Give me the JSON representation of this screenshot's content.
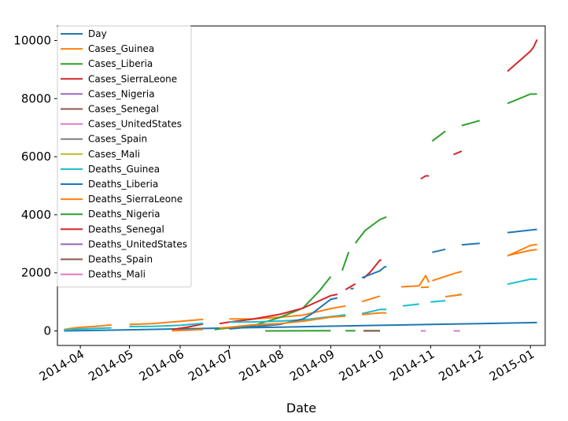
{
  "chart_data": {
    "type": "line",
    "title": "",
    "xlabel": "Date",
    "ylabel": "",
    "xlim": [
      "2014-03-18",
      "2015-01-10"
    ],
    "ylim": [
      -500,
      10500
    ],
    "x_ticks": [
      {
        "date": "2014-04-01",
        "label": "2014-04"
      },
      {
        "date": "2014-05-01",
        "label": "2014-05"
      },
      {
        "date": "2014-06-01",
        "label": "2014-06"
      },
      {
        "date": "2014-07-01",
        "label": "2014-07"
      },
      {
        "date": "2014-08-01",
        "label": "2014-08"
      },
      {
        "date": "2014-09-01",
        "label": "2014-09"
      },
      {
        "date": "2014-10-01",
        "label": "2014-10"
      },
      {
        "date": "2014-11-01",
        "label": "2014-11"
      },
      {
        "date": "2014-12-01",
        "label": "2014-12"
      },
      {
        "date": "2015-01-01",
        "label": "2015-01"
      }
    ],
    "y_ticks": [
      0,
      2000,
      4000,
      6000,
      8000,
      10000
    ],
    "legend_position": "upper-left",
    "series": [
      {
        "name": "Day",
        "color": "#1f77b4",
        "points": [
          [
            "2014-03-22",
            0
          ],
          [
            "2014-05-01",
            40
          ],
          [
            "2014-06-01",
            71
          ],
          [
            "2014-07-01",
            101
          ],
          [
            "2014-08-01",
            132
          ],
          [
            "2014-09-01",
            163
          ],
          [
            "2014-10-01",
            193
          ],
          [
            "2014-11-01",
            224
          ],
          [
            "2014-12-01",
            254
          ],
          [
            "2015-01-05",
            289
          ]
        ]
      },
      {
        "name": "Cases_Guinea",
        "color": "#ff7f0e",
        "points": [
          [
            "2014-03-22",
            49
          ],
          [
            "2014-03-26",
            86
          ],
          [
            "2014-04-01",
            122
          ],
          [
            "2014-04-10",
            157
          ],
          [
            "2014-04-20",
            208
          ],
          null,
          [
            "2014-05-01",
            226
          ],
          [
            "2014-05-15",
            250
          ],
          [
            "2014-06-01",
            328
          ],
          [
            "2014-06-15",
            398
          ],
          null,
          [
            "2014-07-01",
            413
          ],
          [
            "2014-07-15",
            411
          ],
          [
            "2014-08-01",
            472
          ],
          [
            "2014-08-15",
            543
          ],
          [
            "2014-09-01",
            771
          ],
          [
            "2014-09-10",
            861
          ],
          null,
          [
            "2014-09-20",
            1008
          ],
          [
            "2014-10-01",
            1199
          ],
          null,
          [
            "2014-10-14",
            1519
          ],
          [
            "2014-10-25",
            1553
          ],
          [
            "2014-10-29",
            1906
          ],
          [
            "2014-10-31",
            1667
          ],
          null,
          [
            "2014-11-02",
            1731
          ],
          [
            "2014-11-15",
            1971
          ],
          [
            "2014-11-20",
            2047
          ],
          null,
          [
            "2014-12-18",
            2597
          ],
          [
            "2015-01-01",
            2775
          ],
          [
            "2015-01-05",
            2806
          ]
        ]
      },
      {
        "name": "Cases_Liberia",
        "color": "#2ca02c",
        "points": [
          [
            "2014-06-22",
            51
          ],
          [
            "2014-07-01",
            107
          ],
          [
            "2014-07-15",
            172
          ],
          [
            "2014-08-01",
            468
          ],
          [
            "2014-08-15",
            786
          ],
          [
            "2014-08-25",
            1378
          ],
          [
            "2014-09-01",
            1871
          ],
          null,
          [
            "2014-09-08",
            2081
          ],
          [
            "2014-09-12",
            2720
          ],
          null,
          [
            "2014-09-16",
            3022
          ],
          [
            "2014-09-22",
            3458
          ],
          [
            "2014-10-01",
            3834
          ],
          [
            "2014-10-05",
            3924
          ],
          null,
          [
            "2014-11-02",
            6535
          ],
          [
            "2014-11-10",
            6878
          ],
          null,
          [
            "2014-11-20",
            7069
          ],
          [
            "2014-12-01",
            7244
          ],
          null,
          [
            "2014-12-18",
            7830
          ],
          [
            "2015-01-01",
            8157
          ],
          [
            "2015-01-05",
            8157
          ]
        ]
      },
      {
        "name": "Cases_SierraLeone",
        "color": "#d62728",
        "points": [
          [
            "2014-05-27",
            50
          ],
          [
            "2014-06-05",
            127
          ],
          [
            "2014-06-15",
            239
          ],
          null,
          [
            "2014-06-25",
            252
          ],
          [
            "2014-07-01",
            305
          ],
          [
            "2014-07-15",
            405
          ],
          [
            "2014-08-01",
            574
          ],
          [
            "2014-08-15",
            783
          ],
          [
            "2014-09-01",
            1216
          ],
          [
            "2014-09-05",
            1261
          ],
          null,
          [
            "2014-09-10",
            1424
          ],
          [
            "2014-09-16",
            1620
          ],
          null,
          [
            "2014-09-21",
            1813
          ],
          [
            "2014-09-25",
            2021
          ],
          [
            "2014-10-01",
            2437
          ],
          [
            "2014-10-02",
            2437
          ],
          null,
          [
            "2014-10-26",
            5235
          ],
          [
            "2014-10-29",
            5338
          ],
          [
            "2014-10-31",
            5338
          ],
          null,
          [
            "2014-11-15",
            6073
          ],
          [
            "2014-11-20",
            6190
          ],
          null,
          [
            "2014-12-18",
            8939
          ],
          [
            "2015-01-01",
            9633
          ],
          [
            "2015-01-03",
            9780
          ],
          [
            "2015-01-05",
            10030
          ]
        ]
      },
      {
        "name": "Cases_Nigeria",
        "color": "#9467bd",
        "points": []
      },
      {
        "name": "Cases_Senegal",
        "color": "#8c564b",
        "points": []
      },
      {
        "name": "Cases_UnitedStates",
        "color": "#e377c2",
        "points": []
      },
      {
        "name": "Cases_Spain",
        "color": "#7f7f7f",
        "points": []
      },
      {
        "name": "Cases_Mali",
        "color": "#bcbd22",
        "points": []
      },
      {
        "name": "Deaths_Guinea",
        "color": "#17becf",
        "points": [
          [
            "2014-03-22",
            29
          ],
          [
            "2014-04-01",
            70
          ],
          [
            "2014-04-20",
            108
          ],
          null,
          [
            "2014-05-01",
            149
          ],
          [
            "2014-05-15",
            155
          ],
          [
            "2014-06-01",
            193
          ],
          [
            "2014-06-15",
            264
          ],
          null,
          [
            "2014-07-01",
            303
          ],
          [
            "2014-07-15",
            310
          ],
          [
            "2014-08-01",
            339
          ],
          [
            "2014-08-15",
            380
          ],
          [
            "2014-09-01",
            491
          ],
          [
            "2014-09-10",
            557
          ],
          null,
          [
            "2014-09-20",
            595
          ],
          [
            "2014-10-01",
            739
          ],
          [
            "2014-10-05",
            739
          ],
          null,
          [
            "2014-10-15",
            862
          ],
          [
            "2014-10-25",
            926
          ],
          null,
          [
            "2014-11-01",
            997
          ],
          [
            "2014-11-10",
            1041
          ],
          null,
          [
            "2014-11-15",
            1214
          ],
          [
            "2014-11-20",
            1260
          ],
          null,
          [
            "2014-12-18",
            1607
          ],
          [
            "2015-01-01",
            1781
          ],
          [
            "2015-01-05",
            1781
          ]
        ]
      },
      {
        "name": "Deaths_Liberia",
        "color": "#1f77b4",
        "points": [
          [
            "2014-07-01",
            70
          ],
          [
            "2014-07-15",
            145
          ],
          [
            "2014-08-01",
            227
          ],
          [
            "2014-08-15",
            413
          ],
          [
            "2014-08-20",
            576
          ],
          [
            "2014-09-01",
            1089
          ],
          [
            "2014-09-05",
            1137
          ],
          null,
          [
            "2014-09-13",
            1459
          ],
          [
            "2014-09-15",
            1459
          ],
          null,
          [
            "2014-09-20",
            1830
          ],
          [
            "2014-10-01",
            2069
          ],
          [
            "2014-10-04",
            2210
          ],
          [
            "2014-10-05",
            2210
          ],
          null,
          [
            "2014-11-02",
            2705
          ],
          [
            "2014-11-10",
            2812
          ],
          null,
          [
            "2014-11-20",
            2964
          ],
          [
            "2014-12-01",
            3016
          ],
          null,
          [
            "2014-12-18",
            3384
          ],
          [
            "2015-01-01",
            3471
          ],
          [
            "2015-01-05",
            3496
          ]
        ]
      },
      {
        "name": "Deaths_SierraLeone",
        "color": "#ff7f0e",
        "points": [
          [
            "2014-05-27",
            5
          ],
          [
            "2014-06-15",
            49
          ],
          null,
          [
            "2014-06-25",
            99
          ],
          [
            "2014-07-01",
            127
          ],
          [
            "2014-07-15",
            206
          ],
          [
            "2014-08-01",
            252
          ],
          [
            "2014-08-15",
            334
          ],
          [
            "2014-09-01",
            476
          ],
          [
            "2014-09-10",
            509
          ],
          null,
          [
            "2014-09-20",
            562
          ],
          [
            "2014-10-01",
            623
          ],
          [
            "2014-10-05",
            623
          ],
          null,
          [
            "2014-10-26",
            1500
          ],
          [
            "2014-10-31",
            1510
          ],
          null,
          [
            "2014-11-10",
            1180
          ],
          [
            "2014-11-20",
            1250
          ],
          null,
          [
            "2014-12-18",
            2582
          ],
          [
            "2015-01-01",
            2943
          ],
          [
            "2015-01-05",
            2977
          ]
        ]
      },
      {
        "name": "Deaths_Nigeria",
        "color": "#2ca02c",
        "points": [
          [
            "2014-07-23",
            1
          ],
          [
            "2014-08-15",
            4
          ],
          [
            "2014-09-01",
            7
          ],
          null,
          [
            "2014-09-10",
            8
          ],
          [
            "2014-09-16",
            8
          ],
          null,
          [
            "2014-09-21",
            8
          ],
          [
            "2014-10-01",
            8
          ]
        ]
      },
      {
        "name": "Deaths_Senegal",
        "color": "#d62728",
        "points": [
          [
            "2014-09-21",
            0
          ],
          [
            "2014-10-01",
            0
          ]
        ]
      },
      {
        "name": "Deaths_UnitedStates",
        "color": "#9467bd",
        "points": [
          [
            "2014-09-21",
            0
          ],
          [
            "2014-10-01",
            0
          ]
        ]
      },
      {
        "name": "Deaths_Spain",
        "color": "#8c564b",
        "points": [
          [
            "2014-09-21",
            0
          ],
          [
            "2014-10-01",
            0
          ]
        ]
      },
      {
        "name": "Deaths_Mali",
        "color": "#e377c2",
        "points": [
          [
            "2014-10-26",
            0
          ],
          [
            "2014-10-29",
            0
          ],
          null,
          [
            "2014-11-15",
            0
          ],
          [
            "2014-11-19",
            0
          ]
        ]
      }
    ]
  }
}
